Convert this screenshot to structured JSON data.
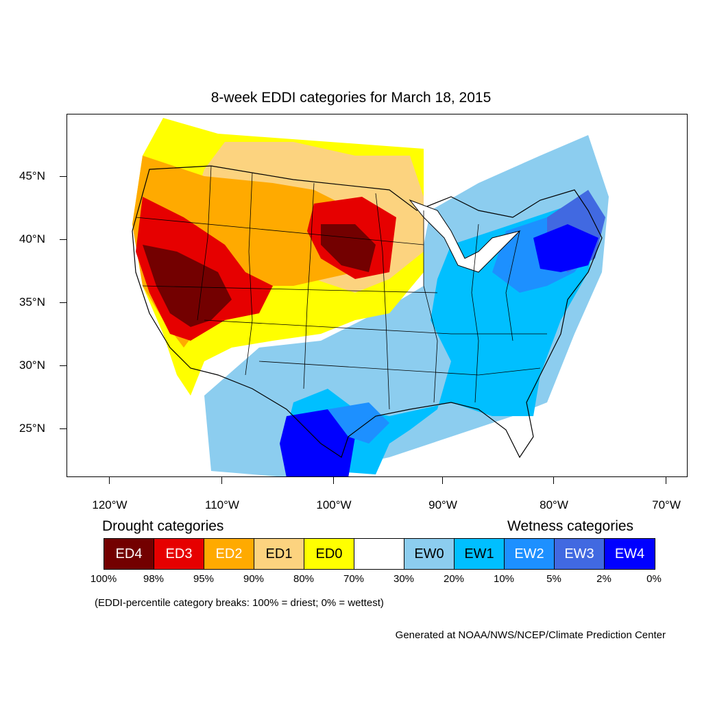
{
  "title": "8-week EDDI categories for March 18, 2015",
  "axes": {
    "y_labels": [
      "45°N",
      "40°N",
      "35°N",
      "30°N",
      "25°N"
    ],
    "x_labels": [
      "120°W",
      "110°W",
      "100°W",
      "90°W",
      "80°W",
      "70°W"
    ]
  },
  "legend": {
    "drought_heading": "Drought categories",
    "wetness_heading": "Wetness categories",
    "categories": [
      {
        "label": "ED4",
        "color": "#730000",
        "text_color": "#ffffff"
      },
      {
        "label": "ED3",
        "color": "#e60000",
        "text_color": "#ffffff"
      },
      {
        "label": "ED2",
        "color": "#ffaa00",
        "text_color": "#ffffff"
      },
      {
        "label": "ED1",
        "color": "#fcd37f",
        "text_color": "#000000"
      },
      {
        "label": "ED0",
        "color": "#ffff00",
        "text_color": "#000000"
      },
      {
        "label": "",
        "color": "#ffffff",
        "text_color": "#000000"
      },
      {
        "label": "EW0",
        "color": "#8ccdef",
        "text_color": "#000000"
      },
      {
        "label": "EW1",
        "color": "#00bfff",
        "text_color": "#000000"
      },
      {
        "label": "EW2",
        "color": "#1d90ff",
        "text_color": "#ffffff"
      },
      {
        "label": "EW3",
        "color": "#4169e1",
        "text_color": "#ffffff"
      },
      {
        "label": "EW4",
        "color": "#0000ff",
        "text_color": "#ffffff"
      }
    ],
    "breaks": [
      "100%",
      "98%",
      "95%",
      "90%",
      "80%",
      "70%",
      "30%",
      "20%",
      "10%",
      "5%",
      "2%",
      "0%"
    ]
  },
  "note": "(EDDI-percentile category breaks: 100% = driest; 0% = wettest)",
  "credit": "Generated at NOAA/NWS/NCEP/Climate Prediction Center"
}
